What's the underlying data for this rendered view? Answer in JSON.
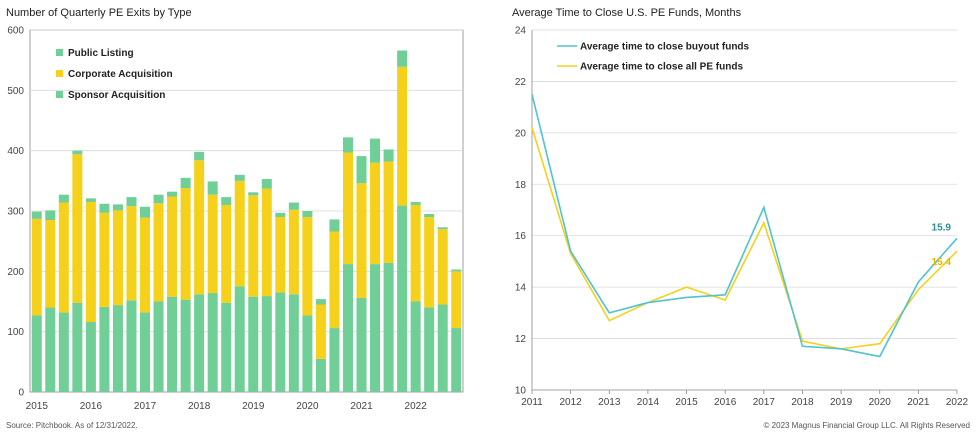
{
  "charts": {
    "left": {
      "title": "Number of Quarterly PE Exits by Type"
    },
    "right": {
      "title": "Average Time to Close U.S. PE Funds, Months"
    }
  },
  "footer": {
    "source": "Source: Pitchbook. As of 12/31/2022.",
    "copyright": "© 2023 Magnus Financial Group LLC. All Rights Reserved"
  },
  "colors": {
    "green": "#6fcf97",
    "yellow": "#f5d11b",
    "teal": "#4fc3cf",
    "teal_label": "#2a8f96",
    "yellow_label": "#e0b800",
    "grid": "#d9d9d9",
    "axis": "#888888"
  },
  "chart_data": [
    {
      "type": "bar",
      "stacked": true,
      "title": "Number of Quarterly PE Exits by Type",
      "ylim": [
        0,
        600
      ],
      "yticks": [
        0,
        100,
        200,
        300,
        400,
        500,
        600
      ],
      "xtick_labels": [
        "2015",
        "2016",
        "2017",
        "2018",
        "2019",
        "2020",
        "2021",
        "2022"
      ],
      "legend_placement": "top-left",
      "grid": true,
      "series": [
        {
          "name": "Sponsor Acquisition",
          "color": "#6fcf97",
          "values": [
            127,
            140,
            132,
            148,
            116,
            141,
            144,
            152,
            132,
            150,
            158,
            153,
            162,
            164,
            148,
            175,
            158,
            159,
            165,
            162,
            127,
            55,
            106,
            212,
            156,
            212,
            214,
            309,
            150,
            140,
            145,
            106
          ]
        },
        {
          "name": "Corporate Acquisition",
          "color": "#f5d11b",
          "values": [
            160,
            145,
            182,
            246,
            199,
            156,
            157,
            156,
            157,
            163,
            166,
            185,
            222,
            163,
            162,
            175,
            168,
            178,
            125,
            140,
            163,
            90,
            160,
            185,
            190,
            168,
            168,
            230,
            160,
            150,
            125,
            94
          ]
        },
        {
          "name": "Public Listing",
          "color": "#6fcf97",
          "values": [
            12,
            16,
            13,
            6,
            6,
            15,
            10,
            15,
            18,
            14,
            8,
            17,
            14,
            22,
            13,
            10,
            5,
            16,
            7,
            12,
            10,
            9,
            20,
            25,
            45,
            40,
            20,
            27,
            5,
            5,
            3,
            3
          ]
        }
      ],
      "legend_entries": [
        "Public Listing",
        "Corporate Acquisition",
        "Sponsor Acquisition"
      ]
    },
    {
      "type": "line",
      "title": "Average Time to Close U.S. PE Funds, Months",
      "x": [
        2011,
        2012,
        2013,
        2014,
        2015,
        2016,
        2017,
        2018,
        2019,
        2020,
        2021,
        2022
      ],
      "ylim": [
        10,
        24
      ],
      "yticks": [
        10,
        12,
        14,
        16,
        18,
        20,
        22,
        24
      ],
      "legend_placement": "top-left",
      "grid": true,
      "series": [
        {
          "name": "Average time to close buyout funds",
          "color": "#4fc3cf",
          "values": [
            21.5,
            15.4,
            13.0,
            13.4,
            13.6,
            13.7,
            17.1,
            11.7,
            11.6,
            11.3,
            14.2,
            15.9
          ],
          "end_label": "15.9"
        },
        {
          "name": "Average time to close all PE funds",
          "color": "#f5d11b",
          "values": [
            20.2,
            15.3,
            12.7,
            13.4,
            14.0,
            13.5,
            16.5,
            11.9,
            11.6,
            11.8,
            13.9,
            15.4
          ],
          "end_label": "15.4"
        }
      ]
    }
  ]
}
